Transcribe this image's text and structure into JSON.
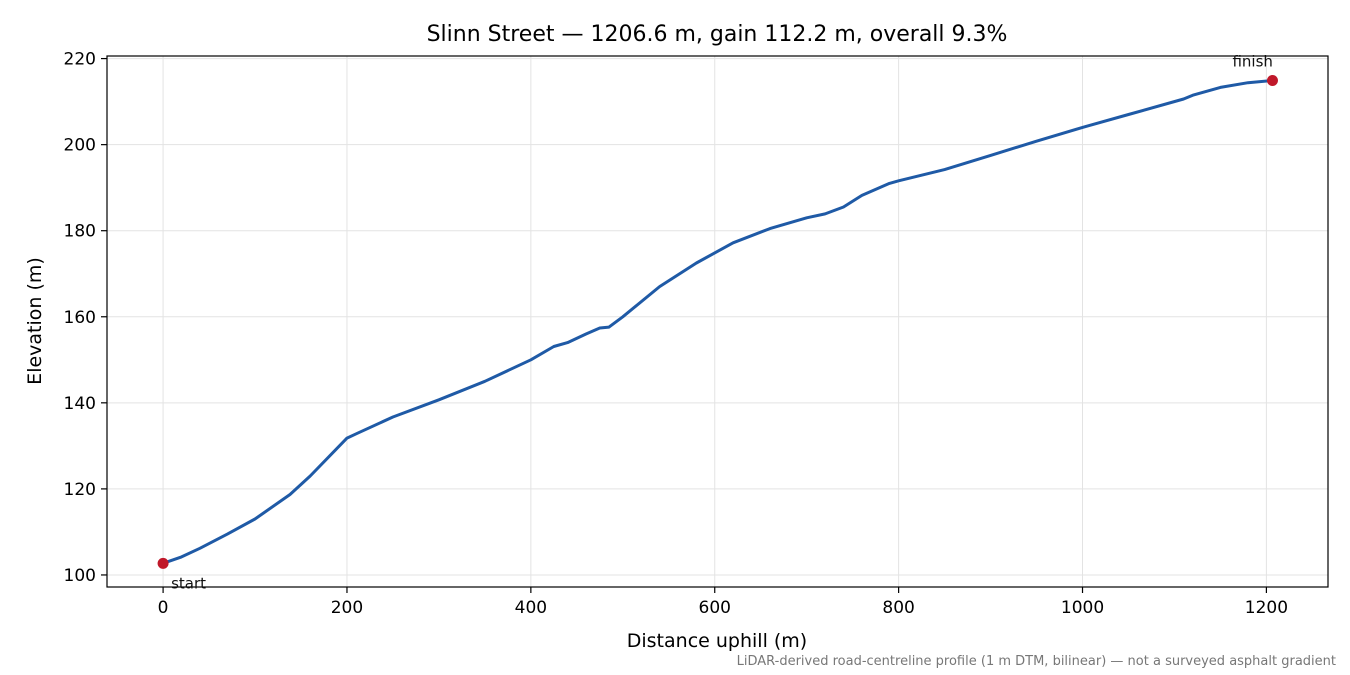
{
  "chart_data": {
    "type": "line",
    "title": "Slinn Street — 1206.6 m, gain 112.2 m, overall 9.3%",
    "xlabel": "Distance uphill (m)",
    "ylabel": "Elevation (m)",
    "xlim": [
      -61,
      1267
    ],
    "ylim": [
      97.2,
      220.6
    ],
    "xticks": [
      0,
      200,
      400,
      600,
      800,
      1000,
      1200
    ],
    "yticks": [
      100,
      120,
      140,
      160,
      180,
      200,
      220
    ],
    "grid": true,
    "line_color": "#1f5aa6",
    "marker_color": "#c0182a",
    "series": [
      {
        "x": [
          0,
          20,
          40,
          70,
          100,
          138,
          160,
          200,
          210,
          250,
          300,
          350,
          400,
          425,
          440,
          460,
          475,
          485,
          500,
          540,
          580,
          620,
          660,
          700,
          720,
          740,
          760,
          790,
          800,
          850,
          900,
          950,
          1000,
          1050,
          1110,
          1120,
          1150,
          1180,
          1206.6
        ],
        "y": [
          102.7,
          104.2,
          106.2,
          109.5,
          113.0,
          118.7,
          123.0,
          131.8,
          132.8,
          136.7,
          140.7,
          145.0,
          150.0,
          153.1,
          154.0,
          156.0,
          157.4,
          157.6,
          160.0,
          167.0,
          172.5,
          177.2,
          180.5,
          183.0,
          183.9,
          185.5,
          188.2,
          191.0,
          191.6,
          194.2,
          197.5,
          200.8,
          204.0,
          207.0,
          210.6,
          211.5,
          213.3,
          214.4,
          214.9
        ]
      }
    ],
    "annotations": [
      {
        "text": "start",
        "x": 0,
        "y": 102.7
      },
      {
        "text": "finish",
        "x": 1206.6,
        "y": 214.9
      }
    ],
    "footnote": "LiDAR-derived road-centreline profile (1 m DTM, bilinear) — not a surveyed asphalt gradient"
  }
}
